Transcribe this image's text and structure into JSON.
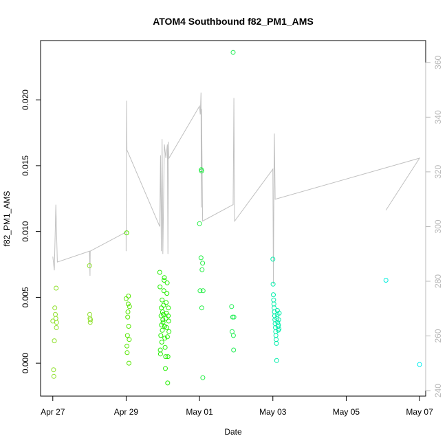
{
  "chart_data": {
    "type": "scatter",
    "title": "ATOM4 Southbound f82_PM1_AMS",
    "xlabel": "Date",
    "ylabel": "f82_PM1_AMS",
    "y2label": "",
    "xlim": [
      "2022-04-26T16:00",
      "2022-05-07T04:00"
    ],
    "ylim": [
      -0.0025,
      0.0245
    ],
    "y2lim": [
      238,
      368
    ],
    "x_ticks": [
      {
        "date": "2022-04-27",
        "label": "Apr 27"
      },
      {
        "date": "2022-04-29",
        "label": "Apr 29"
      },
      {
        "date": "2022-05-01",
        "label": "May 01"
      },
      {
        "date": "2022-05-03",
        "label": "May 03"
      },
      {
        "date": "2022-05-05",
        "label": "May 05"
      },
      {
        "date": "2022-05-07",
        "label": "May 07"
      }
    ],
    "y_ticks": [
      {
        "value": 0.0,
        "label": "0.000"
      },
      {
        "value": 0.005,
        "label": "0.005"
      },
      {
        "value": 0.01,
        "label": "0.010"
      },
      {
        "value": 0.015,
        "label": "0.015"
      },
      {
        "value": 0.02,
        "label": "0.020"
      }
    ],
    "y2_ticks": [
      {
        "value": 240,
        "label": "240"
      },
      {
        "value": 260,
        "label": "260"
      },
      {
        "value": 280,
        "label": "280"
      },
      {
        "value": 300,
        "label": "300"
      },
      {
        "value": 320,
        "label": "320"
      },
      {
        "value": 340,
        "label": "340"
      },
      {
        "value": 360,
        "label": "360"
      }
    ],
    "grid": false,
    "legend": "none",
    "colors": {
      "early": "#8ee02a",
      "mid": "#22ee00",
      "late": "#00eeaa",
      "last": "#00eeee",
      "line": "#c0c0c0"
    },
    "points": [
      {
        "x": "2022-04-27T00:00",
        "y": 0.0032,
        "color": "#8ee02a"
      },
      {
        "x": "2022-04-27T00:30",
        "y": -0.0005,
        "color": "#8ee02a"
      },
      {
        "x": "2022-04-27T00:40",
        "y": -0.001,
        "color": "#8ee02a"
      },
      {
        "x": "2022-04-27T01:00",
        "y": 0.0017,
        "color": "#8ee02a"
      },
      {
        "x": "2022-04-27T01:20",
        "y": 0.0042,
        "color": "#8ee02a"
      },
      {
        "x": "2022-04-27T01:40",
        "y": 0.0037,
        "color": "#8ee02a"
      },
      {
        "x": "2022-04-27T02:00",
        "y": 0.0034,
        "color": "#8ee02a"
      },
      {
        "x": "2022-04-27T02:10",
        "y": 0.0057,
        "color": "#8ee02a"
      },
      {
        "x": "2022-04-27T02:20",
        "y": 0.0027,
        "color": "#8ee02a"
      },
      {
        "x": "2022-04-27T02:30",
        "y": 0.0031,
        "color": "#8ee02a"
      },
      {
        "x": "2022-04-28T00:00",
        "y": 0.0074,
        "color": "#8ee02a"
      },
      {
        "x": "2022-04-28T00:10",
        "y": 0.0037,
        "color": "#8ee02a"
      },
      {
        "x": "2022-04-28T00:20",
        "y": 0.0034,
        "color": "#8ee02a"
      },
      {
        "x": "2022-04-28T00:30",
        "y": 0.0031,
        "color": "#8ee02a"
      },
      {
        "x": "2022-04-28T00:40",
        "y": 0.0033,
        "color": "#8ee02a"
      },
      {
        "x": "2022-04-29T00:00",
        "y": 0.0049,
        "color": "#55e600"
      },
      {
        "x": "2022-04-29T00:20",
        "y": 0.0099,
        "color": "#55e600"
      },
      {
        "x": "2022-04-29T00:30",
        "y": 0.0013,
        "color": "#55e600"
      },
      {
        "x": "2022-04-29T00:40",
        "y": 0.0008,
        "color": "#55e600"
      },
      {
        "x": "2022-04-29T00:50",
        "y": 0.0021,
        "color": "#55e600"
      },
      {
        "x": "2022-04-29T01:00",
        "y": 0.0035,
        "color": "#55e600"
      },
      {
        "x": "2022-04-29T01:10",
        "y": 0.0039,
        "color": "#55e600"
      },
      {
        "x": "2022-04-29T01:20",
        "y": 0.0045,
        "color": "#55e600"
      },
      {
        "x": "2022-04-29T01:30",
        "y": 0.0051,
        "color": "#55e600"
      },
      {
        "x": "2022-04-29T01:40",
        "y": 0.0028,
        "color": "#55e600"
      },
      {
        "x": "2022-04-29T01:50",
        "y": 0.0,
        "color": "#55e600"
      },
      {
        "x": "2022-04-29T02:00",
        "y": 0.0018,
        "color": "#55e600"
      },
      {
        "x": "2022-04-29T02:10",
        "y": 0.0043,
        "color": "#55e600"
      },
      {
        "x": "2022-04-29T22:00",
        "y": 0.0069,
        "color": "#22ee00"
      },
      {
        "x": "2022-04-29T22:10",
        "y": 0.0058,
        "color": "#22ee00"
      },
      {
        "x": "2022-04-29T22:20",
        "y": 0.001,
        "color": "#22ee00"
      },
      {
        "x": "2022-04-29T22:30",
        "y": 0.0007,
        "color": "#22ee00"
      },
      {
        "x": "2022-04-29T22:40",
        "y": 0.0021,
        "color": "#22ee00"
      },
      {
        "x": "2022-04-29T22:50",
        "y": 0.0036,
        "color": "#22ee00"
      },
      {
        "x": "2022-04-29T23:00",
        "y": 0.0042,
        "color": "#22ee00"
      },
      {
        "x": "2022-04-29T23:10",
        "y": 0.0029,
        "color": "#22ee00"
      },
      {
        "x": "2022-04-29T23:20",
        "y": 0.0016,
        "color": "#22ee00"
      },
      {
        "x": "2022-04-29T23:30",
        "y": 0.0048,
        "color": "#22ee00"
      },
      {
        "x": "2022-04-29T23:40",
        "y": 0.0025,
        "color": "#22ee00"
      },
      {
        "x": "2022-04-29T23:50",
        "y": 0.0039,
        "color": "#22ee00"
      },
      {
        "x": "2022-04-30T00:00",
        "y": 0.0033,
        "color": "#22ee00"
      },
      {
        "x": "2022-04-30T00:10",
        "y": 0.0031,
        "color": "#22ee00"
      },
      {
        "x": "2022-04-30T00:20",
        "y": 0.0037,
        "color": "#22ee00"
      },
      {
        "x": "2022-04-30T00:30",
        "y": 0.0044,
        "color": "#22ee00"
      },
      {
        "x": "2022-04-30T00:40",
        "y": 0.0055,
        "color": "#22ee00"
      },
      {
        "x": "2022-04-30T00:50",
        "y": 0.0063,
        "color": "#22ee00"
      },
      {
        "x": "2022-04-30T01:00",
        "y": 0.0065,
        "color": "#22ee00"
      },
      {
        "x": "2022-04-30T01:10",
        "y": 0.0028,
        "color": "#22ee00"
      },
      {
        "x": "2022-04-30T01:20",
        "y": 0.0019,
        "color": "#22ee00"
      },
      {
        "x": "2022-04-30T01:30",
        "y": 0.0012,
        "color": "#22ee00"
      },
      {
        "x": "2022-04-30T01:40",
        "y": -0.0004,
        "color": "#22ee00"
      },
      {
        "x": "2022-04-30T01:50",
        "y": 0.0005,
        "color": "#22ee00"
      },
      {
        "x": "2022-04-30T02:00",
        "y": 0.0034,
        "color": "#22ee00"
      },
      {
        "x": "2022-04-30T02:10",
        "y": 0.0046,
        "color": "#22ee00"
      },
      {
        "x": "2022-04-30T02:20",
        "y": 0.0038,
        "color": "#22ee00"
      },
      {
        "x": "2022-04-30T02:30",
        "y": 0.0027,
        "color": "#22ee00"
      },
      {
        "x": "2022-04-30T02:40",
        "y": 0.0053,
        "color": "#22ee00"
      },
      {
        "x": "2022-04-30T02:50",
        "y": 0.0061,
        "color": "#22ee00"
      },
      {
        "x": "2022-04-30T03:00",
        "y": 0.002,
        "color": "#22ee00"
      },
      {
        "x": "2022-04-30T03:10",
        "y": -0.0015,
        "color": "#22ee00"
      },
      {
        "x": "2022-04-30T03:20",
        "y": 0.0005,
        "color": "#22ee00"
      },
      {
        "x": "2022-04-30T03:30",
        "y": 0.0036,
        "color": "#22ee00"
      },
      {
        "x": "2022-04-30T03:40",
        "y": 0.0042,
        "color": "#22ee00"
      },
      {
        "x": "2022-04-30T03:50",
        "y": 0.0032,
        "color": "#22ee00"
      },
      {
        "x": "2022-04-30T04:00",
        "y": 0.0024,
        "color": "#22ee00"
      },
      {
        "x": "2022-05-01T00:00",
        "y": 0.0106,
        "color": "#22ee44"
      },
      {
        "x": "2022-05-01T00:20",
        "y": 0.0055,
        "color": "#22ee44"
      },
      {
        "x": "2022-05-01T01:00",
        "y": 0.008,
        "color": "#22ee44"
      },
      {
        "x": "2022-05-01T01:10",
        "y": 0.0147,
        "color": "#22ee44"
      },
      {
        "x": "2022-05-01T01:20",
        "y": 0.0146,
        "color": "#22ee44"
      },
      {
        "x": "2022-05-01T01:30",
        "y": 0.0042,
        "color": "#22ee44"
      },
      {
        "x": "2022-05-01T01:40",
        "y": 0.0071,
        "color": "#22ee44"
      },
      {
        "x": "2022-05-01T02:00",
        "y": 0.0076,
        "color": "#22ee44"
      },
      {
        "x": "2022-05-01T02:10",
        "y": -0.0011,
        "color": "#22ee44"
      },
      {
        "x": "2022-05-01T02:20",
        "y": 0.0055,
        "color": "#22ee44"
      },
      {
        "x": "2022-05-01T22:00",
        "y": 0.0236,
        "color": "#22ee55"
      },
      {
        "x": "2022-05-01T21:00",
        "y": 0.0043,
        "color": "#22ee55"
      },
      {
        "x": "2022-05-01T21:20",
        "y": 0.0024,
        "color": "#22ee55"
      },
      {
        "x": "2022-05-01T21:40",
        "y": 0.0035,
        "color": "#22ee55"
      },
      {
        "x": "2022-05-01T22:10",
        "y": 0.0021,
        "color": "#22ee55"
      },
      {
        "x": "2022-05-01T22:20",
        "y": 0.001,
        "color": "#22ee55"
      },
      {
        "x": "2022-05-01T22:30",
        "y": 0.0035,
        "color": "#22ee55"
      },
      {
        "x": "2022-05-03T00:00",
        "y": 0.0079,
        "color": "#00eeaa"
      },
      {
        "x": "2022-05-03T00:10",
        "y": 0.006,
        "color": "#00eeaa"
      },
      {
        "x": "2022-05-03T00:20",
        "y": 0.0052,
        "color": "#00eeaa"
      },
      {
        "x": "2022-05-03T00:30",
        "y": 0.0048,
        "color": "#00eeaa"
      },
      {
        "x": "2022-05-03T00:40",
        "y": 0.0045,
        "color": "#00eeaa"
      },
      {
        "x": "2022-05-03T00:50",
        "y": 0.0042,
        "color": "#00eeaa"
      },
      {
        "x": "2022-05-03T01:00",
        "y": 0.0039,
        "color": "#00eeaa"
      },
      {
        "x": "2022-05-03T01:10",
        "y": 0.0036,
        "color": "#00eeaa"
      },
      {
        "x": "2022-05-03T01:20",
        "y": 0.0033,
        "color": "#00eeaa"
      },
      {
        "x": "2022-05-03T01:30",
        "y": 0.003,
        "color": "#00eeaa"
      },
      {
        "x": "2022-05-03T01:40",
        "y": 0.0027,
        "color": "#00eeaa"
      },
      {
        "x": "2022-05-03T01:50",
        "y": 0.0024,
        "color": "#00eeaa"
      },
      {
        "x": "2022-05-03T02:00",
        "y": 0.0021,
        "color": "#00eeaa"
      },
      {
        "x": "2022-05-03T02:10",
        "y": 0.0018,
        "color": "#00eeaa"
      },
      {
        "x": "2022-05-03T02:20",
        "y": 0.0015,
        "color": "#00eeaa"
      },
      {
        "x": "2022-05-03T02:30",
        "y": 0.0002,
        "color": "#00eeaa"
      },
      {
        "x": "2022-05-03T02:40",
        "y": 0.0034,
        "color": "#00eeaa"
      },
      {
        "x": "2022-05-03T02:50",
        "y": 0.0037,
        "color": "#00eeaa"
      },
      {
        "x": "2022-05-03T03:00",
        "y": 0.004,
        "color": "#00eeaa"
      },
      {
        "x": "2022-05-03T03:10",
        "y": 0.0031,
        "color": "#00eeaa"
      },
      {
        "x": "2022-05-03T03:20",
        "y": 0.0028,
        "color": "#00eeaa"
      },
      {
        "x": "2022-05-03T03:30",
        "y": 0.0025,
        "color": "#00eeaa"
      },
      {
        "x": "2022-05-03T03:40",
        "y": 0.0029,
        "color": "#00eeaa"
      },
      {
        "x": "2022-05-03T03:50",
        "y": 0.0033,
        "color": "#00eeaa"
      },
      {
        "x": "2022-05-03T04:00",
        "y": 0.0026,
        "color": "#00eeaa"
      },
      {
        "x": "2022-05-03T04:10",
        "y": 0.0038,
        "color": "#00eeaa"
      },
      {
        "x": "2022-05-06T02:00",
        "y": 0.0063,
        "color": "#00eedd"
      },
      {
        "x": "2022-05-07T00:00",
        "y": -0.0001,
        "color": "#00eeee"
      }
    ],
    "line_y2": [
      {
        "x": "2022-04-27T00:00",
        "y": 289
      },
      {
        "x": "2022-04-27T01:00",
        "y": 284
      },
      {
        "x": "2022-04-27T02:00",
        "y": 308
      },
      {
        "x": "2022-04-27T03:00",
        "y": 287
      },
      {
        "x": "2022-04-28T00:00",
        "y": 291
      },
      {
        "x": "2022-04-28T00:20",
        "y": 282
      },
      {
        "x": "2022-04-28T00:30",
        "y": 291
      },
      {
        "x": "2022-04-28T23:59",
        "y": 298
      },
      {
        "x": "2022-04-29T00:00",
        "y": 291
      },
      {
        "x": "2022-04-29T00:20",
        "y": 346
      },
      {
        "x": "2022-04-29T00:30",
        "y": 328
      },
      {
        "x": "2022-04-29T22:00",
        "y": 300
      },
      {
        "x": "2022-04-29T22:30",
        "y": 326
      },
      {
        "x": "2022-04-29T23:00",
        "y": 291
      },
      {
        "x": "2022-04-29T23:30",
        "y": 332
      },
      {
        "x": "2022-04-30T00:00",
        "y": 290
      },
      {
        "x": "2022-04-30T01:00",
        "y": 330
      },
      {
        "x": "2022-04-30T02:00",
        "y": 325
      },
      {
        "x": "2022-04-30T03:00",
        "y": 330
      },
      {
        "x": "2022-04-30T03:20",
        "y": 290
      },
      {
        "x": "2022-04-30T03:40",
        "y": 331
      },
      {
        "x": "2022-04-30T04:00",
        "y": 325
      },
      {
        "x": "2022-05-01T00:00",
        "y": 344
      },
      {
        "x": "2022-05-01T00:30",
        "y": 341
      },
      {
        "x": "2022-05-01T01:00",
        "y": 349
      },
      {
        "x": "2022-05-01T01:10",
        "y": 307
      },
      {
        "x": "2022-05-01T01:20",
        "y": 343
      },
      {
        "x": "2022-05-01T02:00",
        "y": 302
      },
      {
        "x": "2022-05-01T22:00",
        "y": 308
      },
      {
        "x": "2022-05-01T22:30",
        "y": 347
      },
      {
        "x": "2022-05-01T23:00",
        "y": 302
      },
      {
        "x": "2022-05-03T00:00",
        "y": 321
      },
      {
        "x": "2022-05-03T00:20",
        "y": 279
      },
      {
        "x": "2022-05-03T00:40",
        "y": 312
      },
      {
        "x": "2022-05-03T01:00",
        "y": 334
      },
      {
        "x": "2022-05-03T01:30",
        "y": 310
      },
      {
        "x": "2022-05-07T00:00",
        "y": 325
      },
      {
        "x": "2022-05-06T02:00",
        "y": 306
      }
    ]
  }
}
